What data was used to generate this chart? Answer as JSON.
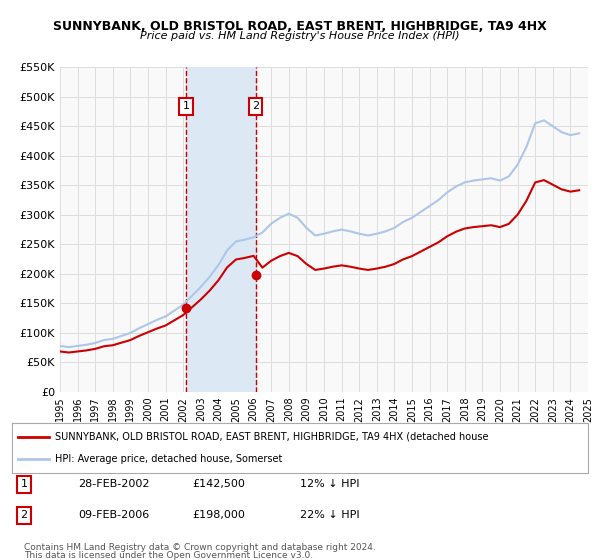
{
  "title": "SUNNYBANK, OLD BRISTOL ROAD, EAST BRENT, HIGHBRIDGE, TA9 4HX",
  "subtitle": "Price paid vs. HM Land Registry's House Price Index (HPI)",
  "xlim": [
    1995,
    2025
  ],
  "ylim": [
    0,
    550000
  ],
  "yticks": [
    0,
    50000,
    100000,
    150000,
    200000,
    250000,
    300000,
    350000,
    400000,
    450000,
    500000,
    550000
  ],
  "ytick_labels": [
    "£0",
    "£50K",
    "£100K",
    "£150K",
    "£200K",
    "£250K",
    "£300K",
    "£350K",
    "£400K",
    "£450K",
    "£500K",
    "£550K"
  ],
  "xticks": [
    1995,
    1996,
    1997,
    1998,
    1999,
    2000,
    2001,
    2002,
    2003,
    2004,
    2005,
    2006,
    2007,
    2008,
    2009,
    2010,
    2011,
    2012,
    2013,
    2014,
    2015,
    2016,
    2017,
    2018,
    2019,
    2020,
    2021,
    2022,
    2023,
    2024,
    2025
  ],
  "hpi_color": "#aec6e8",
  "price_color": "#cc0000",
  "sale1_date": 2002.16,
  "sale1_price": 142500,
  "sale1_label": "1",
  "sale1_text": "28-FEB-2002",
  "sale1_price_text": "£142,500",
  "sale1_hpi_text": "12% ↓ HPI",
  "sale2_date": 2006.11,
  "sale2_price": 198000,
  "sale2_label": "2",
  "sale2_text": "09-FEB-2006",
  "sale2_price_text": "£198,000",
  "sale2_hpi_text": "22% ↓ HPI",
  "legend_line1": "SUNNYBANK, OLD BRISTOL ROAD, EAST BRENT, HIGHBRIDGE, TA9 4HX (detached house",
  "legend_line2": "HPI: Average price, detached house, Somerset",
  "footer1": "Contains HM Land Registry data © Crown copyright and database right 2024.",
  "footer2": "This data is licensed under the Open Government Licence v3.0.",
  "bg_color": "#ffffff",
  "plot_bg_color": "#f9f9f9",
  "grid_color": "#dddddd",
  "shade_color": "#dce9f5"
}
